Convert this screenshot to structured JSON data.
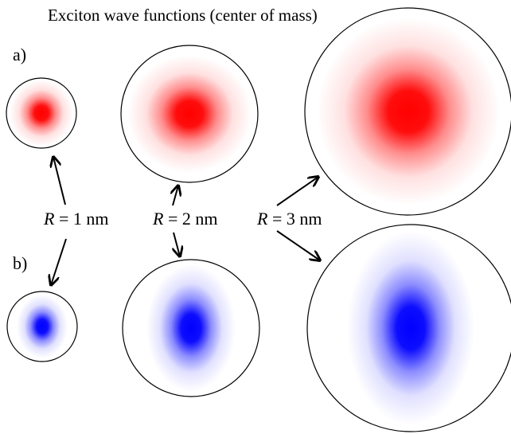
{
  "title": "Exciton wave functions (center of mass)",
  "panel_labels": {
    "a": "a)",
    "b": "b)"
  },
  "radius_labels": [
    {
      "var": "R",
      "rest": " = 1 nm"
    },
    {
      "var": "R",
      "rest": " = 2 nm"
    },
    {
      "var": "R",
      "rest": " = 3 nm"
    }
  ],
  "colors": {
    "row_a": "#ff0000",
    "row_b": "#0000ff",
    "outline": "#000000"
  }
}
